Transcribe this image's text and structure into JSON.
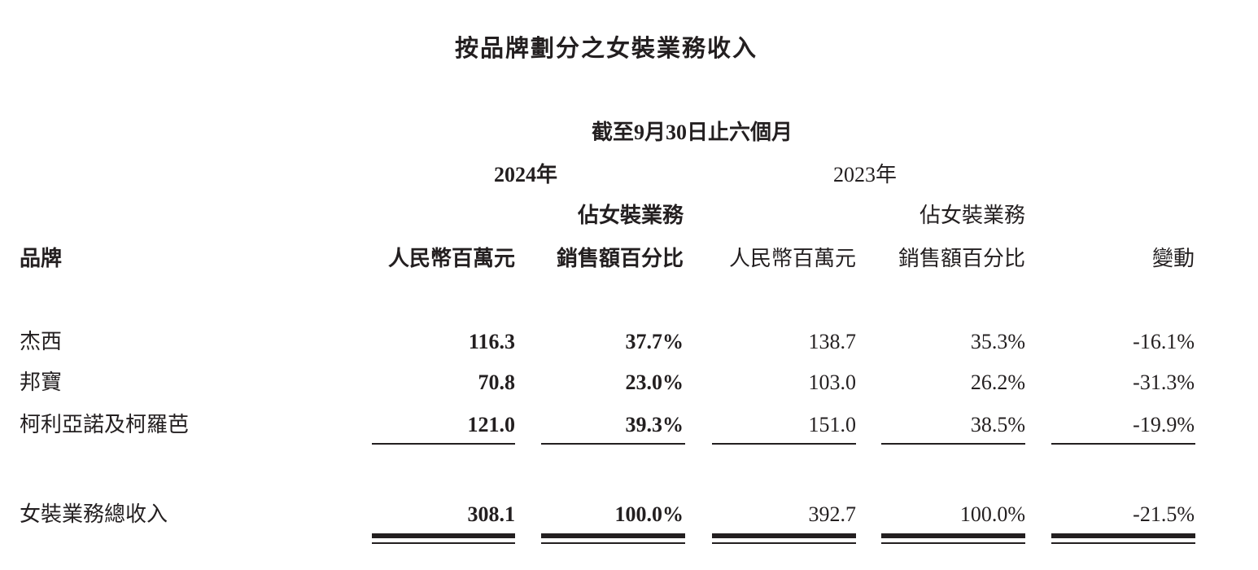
{
  "title": "按品牌劃分之女裝業務收入",
  "period": "截至9月30日止六個月",
  "years": [
    "2024年",
    "2023年"
  ],
  "headers": {
    "brand": "品牌",
    "rmb_2024": "人民幣百萬元",
    "pct_2024_line1": "佔女裝業務",
    "pct_2024_line2": "銷售額百分比",
    "rmb_2023": "人民幣百萬元",
    "pct_2023_line1": "佔女裝業務",
    "pct_2023_line2": "銷售額百分比",
    "change": "變動"
  },
  "rows": [
    {
      "brand": "杰西",
      "rmb_2024": "116.3",
      "pct_2024": "37.7%",
      "rmb_2023": "138.7",
      "pct_2023": "35.3%",
      "change": "-16.1%"
    },
    {
      "brand": "邦寶",
      "rmb_2024": "70.8",
      "pct_2024": "23.0%",
      "rmb_2023": "103.0",
      "pct_2023": "26.2%",
      "change": "-31.3%"
    },
    {
      "brand": "柯利亞諾及柯羅芭",
      "rmb_2024": "121.0",
      "pct_2024": "39.3%",
      "rmb_2023": "151.0",
      "pct_2023": "38.5%",
      "change": "-19.9%"
    }
  ],
  "total": {
    "brand": "女裝業務總收入",
    "rmb_2024": "308.1",
    "pct_2024": "100.0%",
    "rmb_2023": "392.7",
    "pct_2023": "100.0%",
    "change": "-21.5%"
  }
}
